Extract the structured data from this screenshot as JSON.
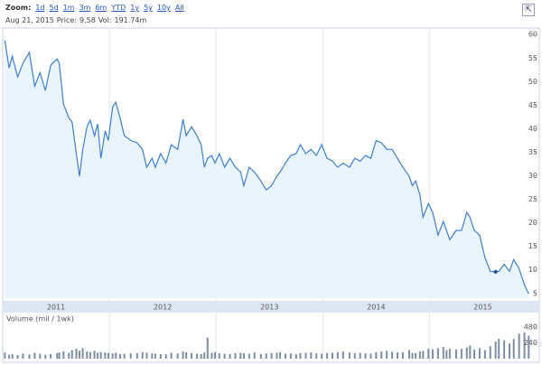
{
  "zoom": {
    "label": "Zoom:",
    "options": [
      "1d",
      "5d",
      "1m",
      "3m",
      "6m",
      "YTD",
      "1y",
      "5y",
      "10y",
      "All"
    ]
  },
  "info": {
    "date": "Aug 21, 2015",
    "price_label": "Price:",
    "price": 9.58,
    "volume_label": "Vol:",
    "volume": "191.74m"
  },
  "chart_data": [
    {
      "type": "line",
      "color": "#3d7fd1",
      "fill": "#e9f4fc",
      "x": [
        2011.02,
        2011.06,
        2011.09,
        2011.14,
        2011.19,
        2011.25,
        2011.3,
        2011.35,
        2011.4,
        2011.45,
        2011.51,
        2011.53,
        2011.57,
        2011.62,
        2011.65,
        2011.69,
        2011.72,
        2011.75,
        2011.79,
        2011.82,
        2011.86,
        2011.89,
        2011.92,
        2011.96,
        2011.99,
        2012.03,
        2012.06,
        2012.1,
        2012.14,
        2012.2,
        2012.26,
        2012.31,
        2012.35,
        2012.4,
        2012.43,
        2012.48,
        2012.53,
        2012.58,
        2012.64,
        2012.69,
        2012.72,
        2012.77,
        2012.82,
        2012.86,
        2012.89,
        2012.92,
        2012.96,
        2012.99,
        2013.03,
        2013.08,
        2013.13,
        2013.18,
        2013.23,
        2013.26,
        2013.31,
        2013.36,
        2013.42,
        2013.47,
        2013.52,
        2013.57,
        2013.6,
        2013.65,
        2013.7,
        2013.75,
        2013.79,
        2013.84,
        2013.89,
        2013.94,
        2013.99,
        2014.04,
        2014.09,
        2014.14,
        2014.19,
        2014.25,
        2014.3,
        2014.35,
        2014.4,
        2014.45,
        2014.5,
        2014.55,
        2014.6,
        2014.65,
        2014.7,
        2014.75,
        2014.81,
        2014.84,
        2014.87,
        2014.91,
        2014.94,
        2014.99,
        2015.03,
        2015.08,
        2015.13,
        2015.16,
        2015.19,
        2015.25,
        2015.3,
        2015.35,
        2015.38,
        2015.42,
        2015.47,
        2015.52,
        2015.57,
        2015.62,
        2015.65,
        2015.7,
        2015.75,
        2015.79,
        2015.84,
        2015.89,
        2015.93
      ],
      "values": [
        58.7,
        52.9,
        55.4,
        51,
        53.9,
        56.2,
        49,
        51.9,
        48.1,
        53.5,
        54.8,
        53.9,
        45.2,
        42.3,
        41.4,
        34.7,
        29.9,
        35.6,
        40.4,
        41.8,
        38.5,
        41,
        33.7,
        39.5,
        37.5,
        44.6,
        45.6,
        42.3,
        38.5,
        37.5,
        37,
        35.6,
        31.8,
        33.7,
        31.8,
        34.7,
        32.7,
        36.6,
        35.6,
        42,
        38.5,
        40.4,
        38.5,
        36.6,
        31.8,
        33.7,
        34.3,
        32.7,
        34.7,
        31.8,
        33.7,
        31.8,
        30.8,
        27.9,
        31.8,
        30.8,
        28.9,
        27,
        27.9,
        29.9,
        30.8,
        32.7,
        34.3,
        34.7,
        36.6,
        34.7,
        35.6,
        34.3,
        36.6,
        33.7,
        33.1,
        31.8,
        32.7,
        31.8,
        33.7,
        33.1,
        34.3,
        33.7,
        37.5,
        37,
        35.6,
        35.6,
        33.7,
        31.8,
        29.9,
        27.9,
        28.9,
        26,
        21.2,
        24.1,
        22.2,
        17.4,
        20.3,
        18.4,
        16.4,
        18.4,
        18.4,
        22.2,
        21.2,
        18.4,
        17.4,
        12.6,
        9.7,
        9.58,
        9.7,
        11.2,
        9.7,
        12.2,
        10.3,
        6.8,
        4.9
      ],
      "xlim": [
        2011,
        2015.97
      ],
      "ylim": [
        4,
        61
      ],
      "yticks": [
        5,
        10,
        15,
        20,
        25,
        30,
        35,
        40,
        45,
        50,
        55,
        60
      ],
      "xticks": [
        {
          "value": 2011.5,
          "label": "2011"
        },
        {
          "value": 2012.5,
          "label": "2012"
        },
        {
          "value": 2013.5,
          "label": "2013"
        },
        {
          "value": 2014.5,
          "label": "2014"
        },
        {
          "value": 2015.5,
          "label": "2015"
        }
      ],
      "xgrid": [
        2012,
        2013,
        2014,
        2015
      ]
    },
    {
      "type": "bar",
      "title": "Volume (mil / 1wk)",
      "color": "#7d8ea6",
      "values": [
        95,
        60,
        70,
        55,
        80,
        65,
        90,
        75,
        60,
        70,
        85,
        95,
        110,
        90,
        130,
        150,
        120,
        160,
        110,
        100,
        120,
        90,
        100,
        95,
        85,
        80,
        90,
        70,
        75,
        80,
        85,
        100,
        90,
        80,
        75,
        70,
        65,
        90,
        80,
        110,
        100,
        85,
        75,
        70,
        95,
        320,
        90,
        100,
        80,
        75,
        70,
        85,
        90,
        80,
        75,
        95,
        70,
        80,
        85,
        90,
        100,
        75,
        80,
        70,
        85,
        90,
        95,
        80,
        75,
        85,
        90,
        100,
        110,
        95,
        85,
        90,
        80,
        75,
        100,
        110,
        120,
        105,
        95,
        100,
        130,
        90,
        85,
        110,
        120,
        150,
        140,
        160,
        180,
        130,
        150,
        140,
        150,
        170,
        200,
        140,
        160,
        130,
        190,
        260,
        300,
        280,
        230,
        300,
        380,
        400,
        350
      ],
      "ylim": [
        0,
        480
      ],
      "yticks": [
        240,
        480
      ]
    }
  ]
}
